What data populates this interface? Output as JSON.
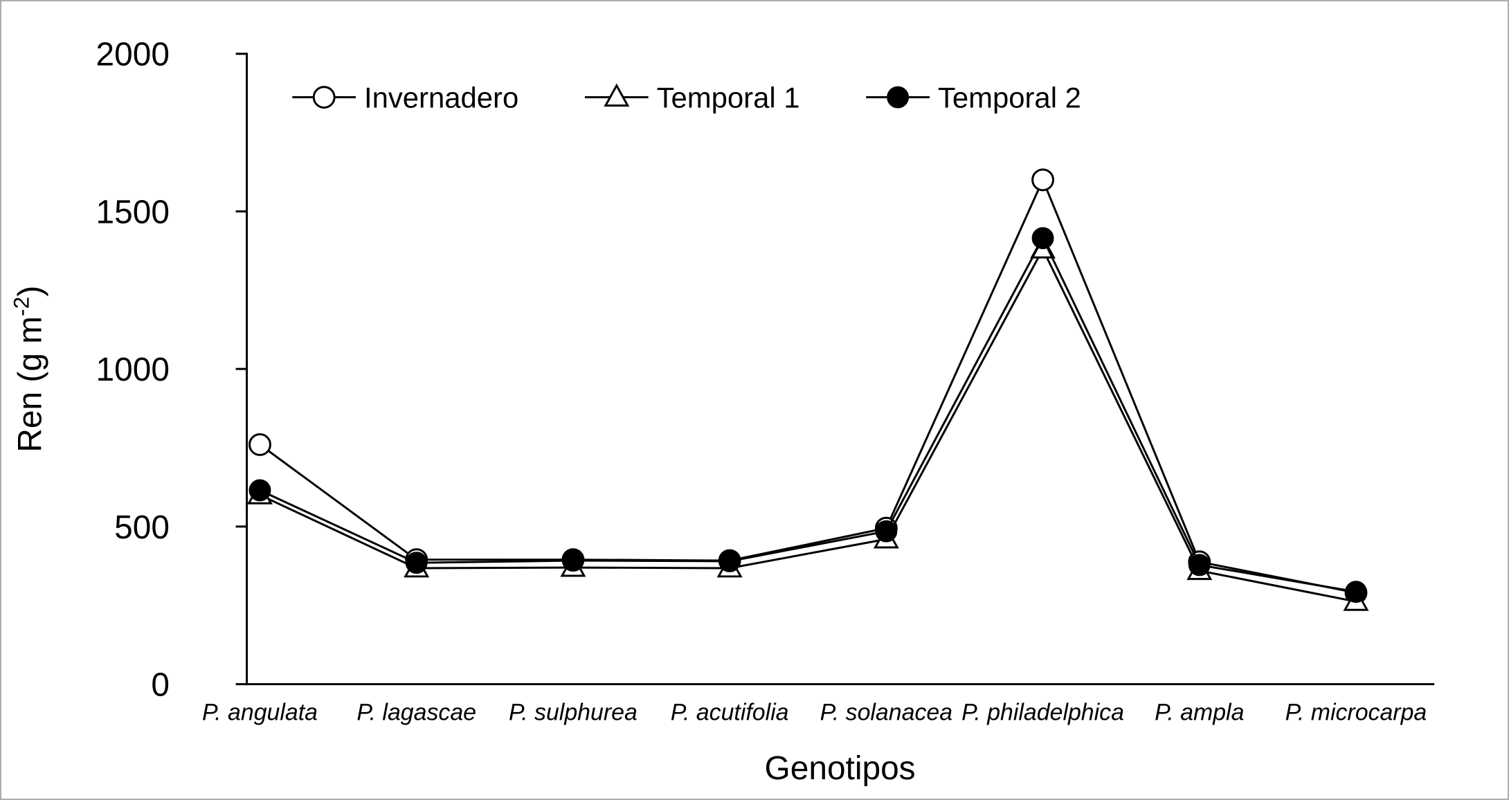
{
  "page": {
    "background": "#ffffff",
    "border_color": "#adadad",
    "ink_color": "#000000"
  },
  "chart_data": {
    "type": "line",
    "title": "",
    "xlabel": "Genotipos",
    "ylabel": "Ren (g m⁻²)",
    "ylim": [
      0,
      2000
    ],
    "yticks": [
      0,
      500,
      1000,
      1500,
      2000
    ],
    "grid": false,
    "legend_position": "top-left-inside",
    "categories": [
      "P. angulata",
      "P. lagascae",
      "P. sulphurea",
      "P. acutifolia",
      "P. solanacea",
      "P. philadelphica",
      "P. ampla",
      "P. microcarpa"
    ],
    "series": [
      {
        "name": "Invernadero",
        "marker": "open-circle",
        "color": "#000000",
        "values": [
          760,
          395,
          395,
          392,
          495,
          1600,
          388,
          290
        ]
      },
      {
        "name": "Temporal 1",
        "marker": "open-triangle",
        "color": "#000000",
        "values": [
          600,
          368,
          370,
          368,
          460,
          1380,
          360,
          262
        ]
      },
      {
        "name": "Temporal 2",
        "marker": "filled-circle",
        "color": "#000000",
        "values": [
          615,
          385,
          392,
          390,
          485,
          1415,
          378,
          293
        ]
      }
    ]
  }
}
